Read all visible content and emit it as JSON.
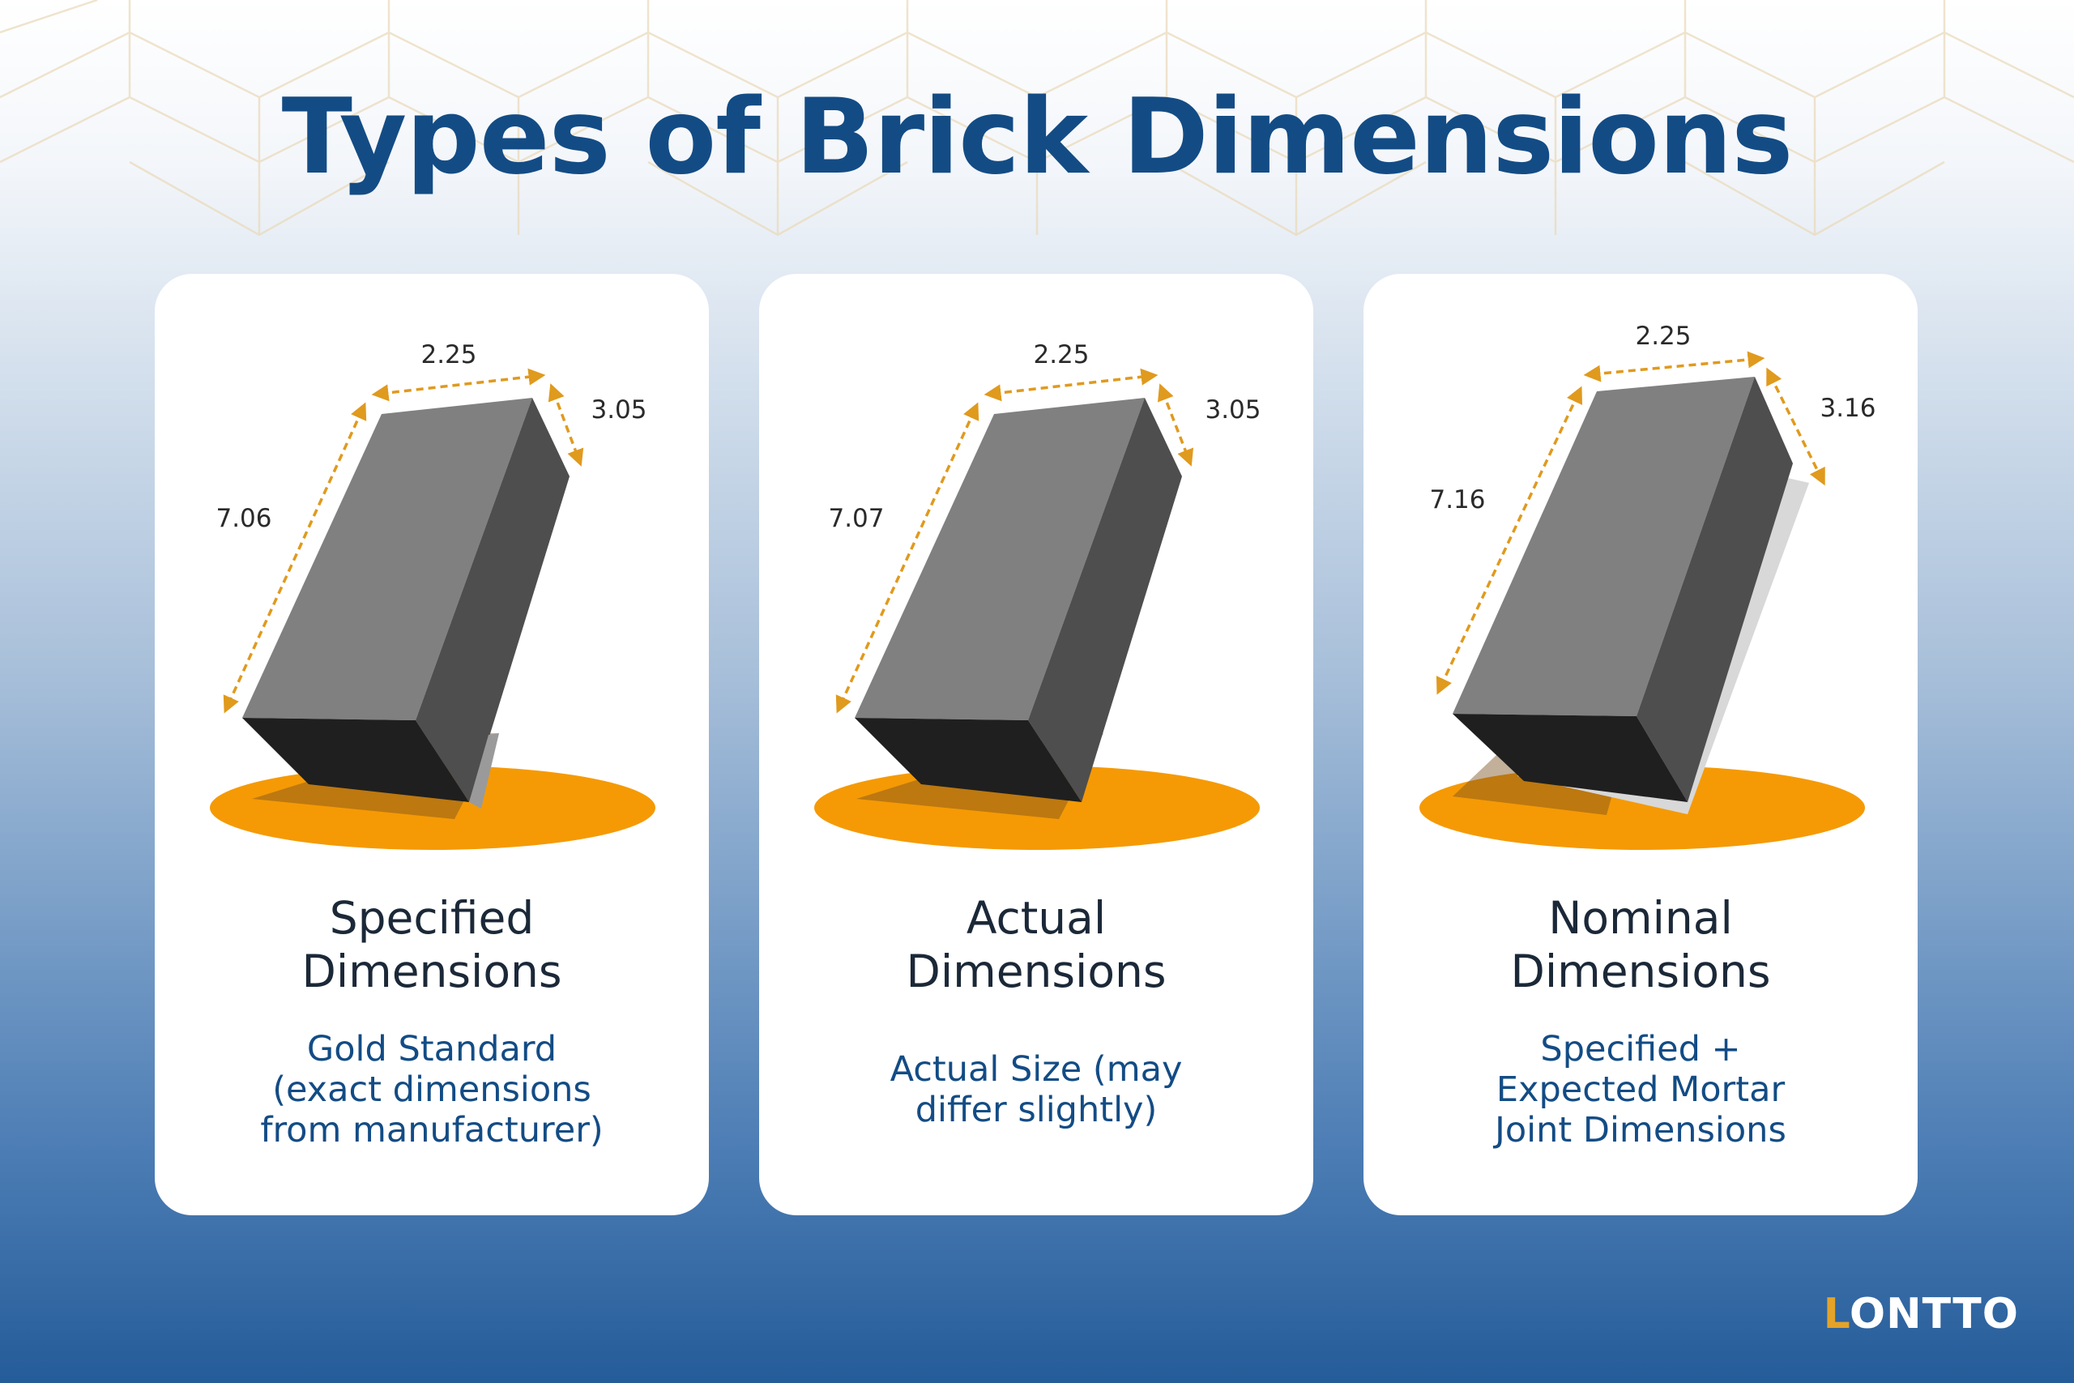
{
  "title": "Types of Brick Dimensions",
  "colors": {
    "title": "#134c85",
    "dimension_arrow": "#e09a1d",
    "base_ellipse": "#f59a05",
    "brick_front": "#808080",
    "brick_side": "#4e4e4e",
    "brick_bottom": "#1f1f1f"
  },
  "cards": [
    {
      "name": "specified",
      "title_lines": [
        "Specified",
        "Dimensions"
      ],
      "desc_lines": [
        "Gold Standard",
        "(exact dimensions",
        "from manufacturer)"
      ],
      "dims": {
        "width": "2.25",
        "depth": "3.05",
        "height": "7.06"
      }
    },
    {
      "name": "actual",
      "title_lines": [
        "Actual",
        "Dimensions"
      ],
      "desc_lines": [
        "Actual Size (may",
        "differ slightly)"
      ],
      "dims": {
        "width": "2.25",
        "depth": "3.05",
        "height": "7.07"
      }
    },
    {
      "name": "nominal",
      "title_lines": [
        "Nominal",
        "Dimensions"
      ],
      "desc_lines": [
        "Specified +",
        "Expected Mortar",
        "Joint Dimensions"
      ],
      "dims": {
        "width": "2.25",
        "depth": "3.16",
        "height": "7.16"
      }
    }
  ],
  "logo": {
    "first": "L",
    "rest": "ONTTO"
  }
}
